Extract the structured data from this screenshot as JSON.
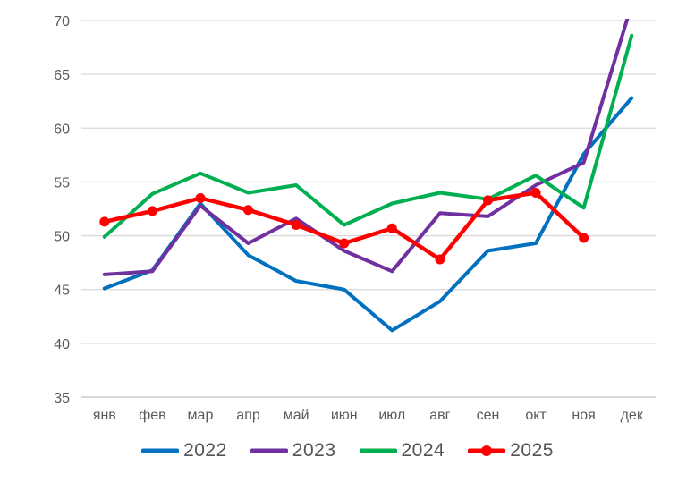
{
  "chart_data": {
    "type": "line",
    "title": "",
    "xlabel": "",
    "ylabel": "",
    "categories": [
      "янв",
      "фев",
      "мар",
      "апр",
      "май",
      "июн",
      "июл",
      "авг",
      "сен",
      "окт",
      "ноя",
      "дек"
    ],
    "series": [
      {
        "name": "2022",
        "color": "#0070C0",
        "marker": false,
        "values": [
          45.1,
          46.8,
          53.0,
          48.2,
          45.8,
          45.0,
          41.2,
          43.9,
          48.6,
          49.3,
          57.6,
          62.8
        ]
      },
      {
        "name": "2023",
        "color": "#7030A0",
        "marker": false,
        "values": [
          46.4,
          46.7,
          52.8,
          49.3,
          51.6,
          48.6,
          46.7,
          52.1,
          51.8,
          54.7,
          56.8,
          71.5
        ]
      },
      {
        "name": "2024",
        "color": "#00B050",
        "marker": false,
        "values": [
          49.9,
          53.9,
          55.8,
          54.0,
          54.7,
          51.0,
          53.0,
          54.0,
          53.4,
          55.6,
          52.6,
          68.6
        ]
      },
      {
        "name": "2025",
        "color": "#FF0000",
        "marker": true,
        "values": [
          51.3,
          52.3,
          53.5,
          52.4,
          51.0,
          49.3,
          50.7,
          47.8,
          53.3,
          54.0,
          49.8,
          null
        ]
      }
    ],
    "ylim": [
      35,
      70
    ],
    "ytick_step": 5,
    "ytick_labels": [
      "35",
      "40",
      "45",
      "50",
      "55",
      "60",
      "65",
      "70"
    ],
    "grid": true,
    "legend_position": "bottom",
    "colors": {
      "axis_text": "#595959",
      "gridline": "#D9D9D9",
      "axis_line": "#BFBFBF",
      "background": "#FFFFFF"
    }
  }
}
